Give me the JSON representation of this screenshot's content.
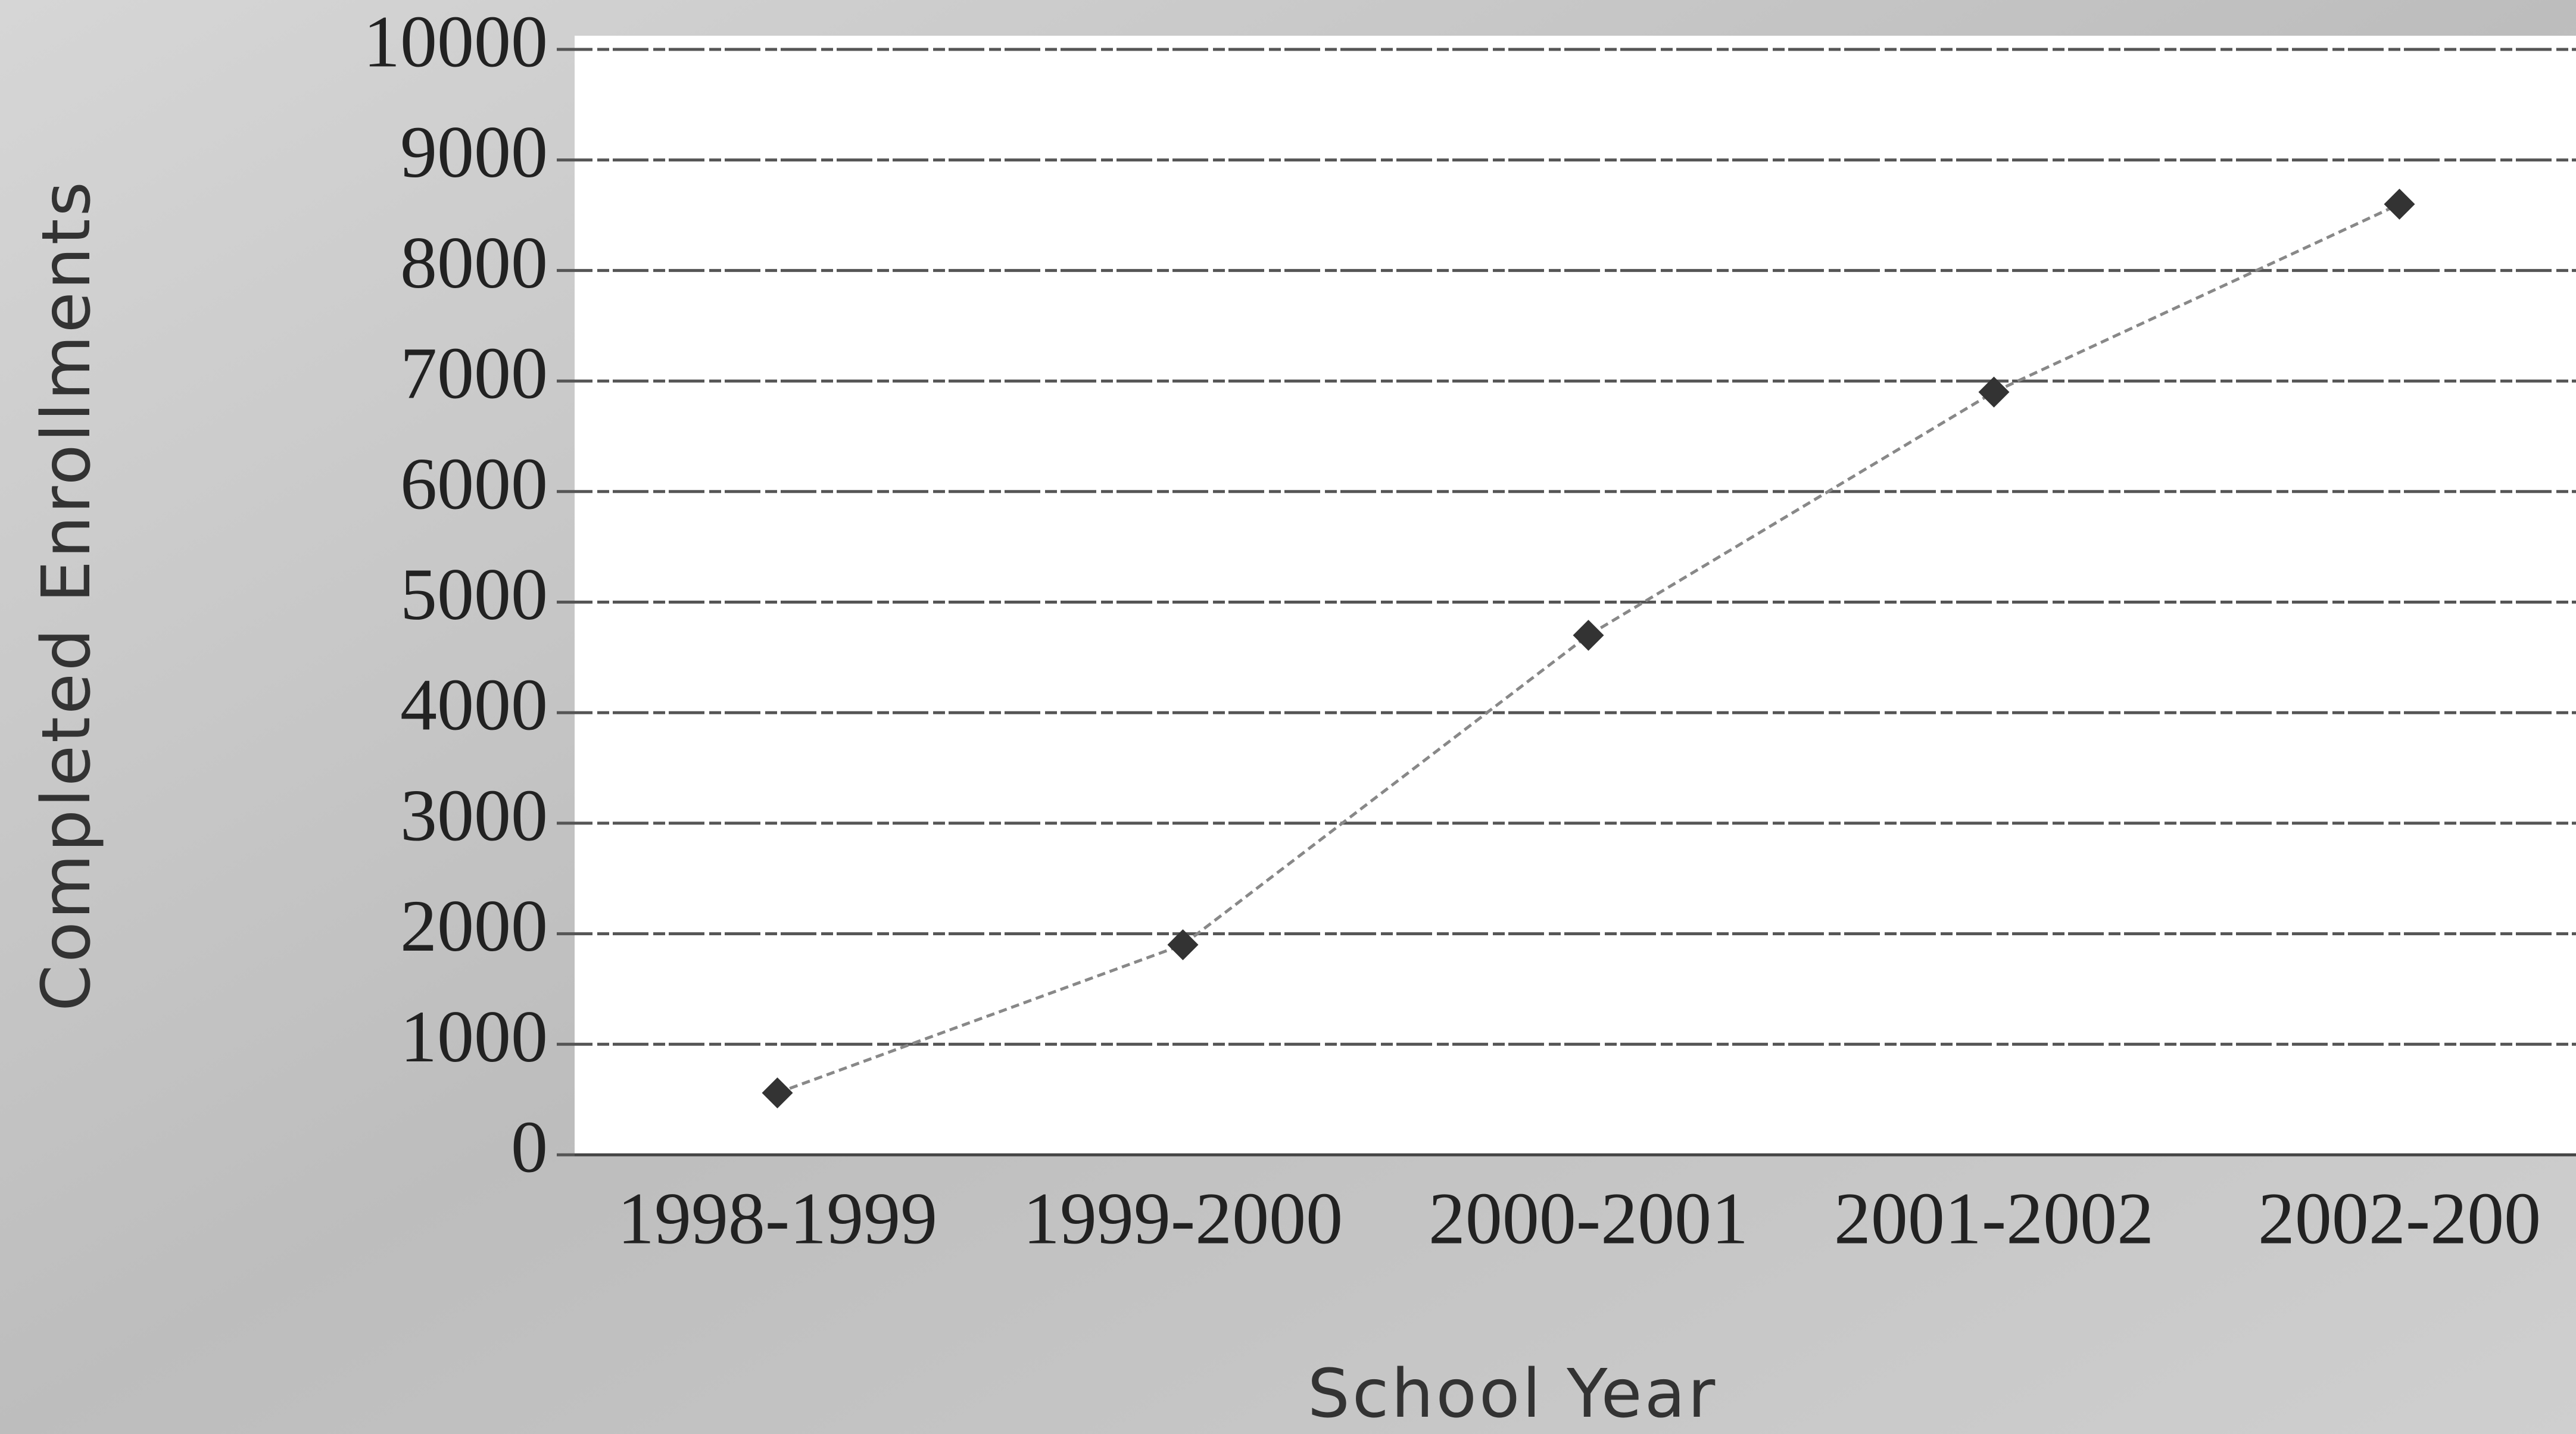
{
  "chart_data": {
    "type": "line",
    "x_label": "School Year",
    "y_label": "Completed Enrollments",
    "categories": [
      "1998-1999",
      "1999-2000",
      "2000-2001",
      "2001-2002",
      "2002-200"
    ],
    "series": [
      {
        "name": "Completed Enrollments",
        "color": "#333333",
        "values": [
          560,
          1900,
          4700,
          6900,
          8600
        ]
      }
    ],
    "ylim": [
      0,
      10000
    ],
    "yticks": [
      0,
      1000,
      2000,
      3000,
      4000,
      5000,
      6000,
      7000,
      8000,
      9000,
      10000
    ],
    "grid": true
  }
}
